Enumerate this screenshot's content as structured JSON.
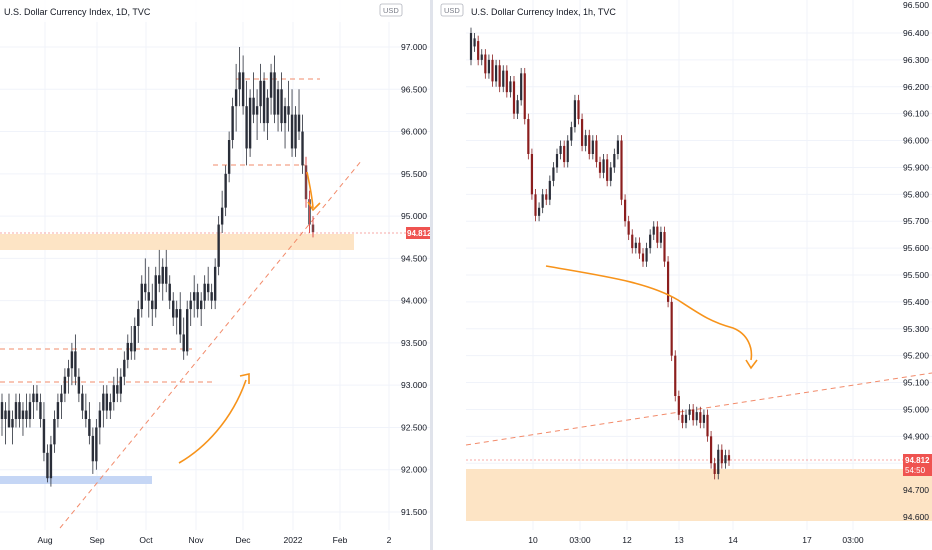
{
  "colors": {
    "up": "#26a69a",
    "down": "#ef5350",
    "candle": "#2a2e39",
    "accent": "#f7931a",
    "support_zone": "#fde3c2",
    "blue_zone": "#c5d6f5",
    "price_label": "#ef5350",
    "dashed": "#f28b6b",
    "curve": "#f7931a"
  },
  "left_chart": {
    "title": "U.S. Dollar Currency Index, 1D, TVC",
    "currency_badge": "USD",
    "y_ticks": [
      "97.000",
      "96.500",
      "96.000",
      "95.500",
      "95.000",
      "94.500",
      "94.000",
      "93.500",
      "93.000",
      "92.500",
      "92.000",
      "91.500"
    ],
    "x_ticks": [
      "Aug",
      "Sep",
      "Oct",
      "Nov",
      "Dec",
      "2022",
      "Feb",
      "2"
    ],
    "last_price": "94.812"
  },
  "right_chart": {
    "title": "U.S. Dollar Currency Index, 1h, TVC",
    "currency_badge": "USD",
    "top_partial_tick": "96.500",
    "y_ticks": [
      "96.400",
      "96.300",
      "96.200",
      "96.100",
      "96.000",
      "95.900",
      "95.800",
      "95.700",
      "95.600",
      "95.500",
      "95.400",
      "95.300",
      "95.200",
      "95.100",
      "95.000",
      "94.900",
      "94.800",
      "94.700",
      "94.600"
    ],
    "x_ticks": [
      "10",
      "03:00",
      "12",
      "13",
      "14",
      "17",
      "03:00"
    ],
    "last_price": "94.812",
    "countdown": "54:50"
  },
  "chart_data": [
    {
      "type": "candlestick",
      "title": "U.S. Dollar Currency Index, 1D, TVC",
      "ylim": [
        91.3,
        97.3
      ],
      "x_labels": [
        "Aug",
        "Sep",
        "Oct",
        "Nov",
        "Dec",
        "2022",
        "Feb",
        "2"
      ],
      "last": 94.812,
      "ohlc": [
        [
          92.8,
          92.9,
          92.4,
          92.6
        ],
        [
          92.6,
          92.8,
          92.3,
          92.7
        ],
        [
          92.7,
          92.9,
          92.5,
          92.5
        ],
        [
          92.5,
          92.7,
          92.3,
          92.6
        ],
        [
          92.6,
          92.9,
          92.5,
          92.8
        ],
        [
          92.8,
          92.9,
          92.5,
          92.6
        ],
        [
          92.6,
          92.8,
          92.4,
          92.7
        ],
        [
          92.7,
          92.9,
          92.5,
          92.6
        ],
        [
          92.6,
          92.9,
          92.5,
          92.8
        ],
        [
          92.8,
          93.0,
          92.6,
          92.9
        ],
        [
          92.9,
          93.0,
          92.7,
          92.8
        ],
        [
          92.8,
          92.9,
          92.5,
          92.6
        ],
        [
          92.6,
          92.8,
          92.1,
          92.2
        ],
        [
          92.2,
          92.3,
          91.85,
          91.9
        ],
        [
          91.9,
          92.4,
          91.8,
          92.3
        ],
        [
          92.3,
          92.7,
          92.2,
          92.6
        ],
        [
          92.6,
          92.9,
          92.5,
          92.8
        ],
        [
          92.8,
          93.0,
          92.6,
          92.9
        ],
        [
          92.9,
          93.2,
          92.8,
          93.1
        ],
        [
          93.1,
          93.3,
          92.9,
          93.2
        ],
        [
          93.2,
          93.5,
          93.0,
          93.4
        ],
        [
          93.4,
          93.6,
          93.0,
          93.1
        ],
        [
          93.1,
          93.2,
          92.8,
          92.9
        ],
        [
          92.9,
          93.0,
          92.6,
          92.7
        ],
        [
          92.7,
          92.9,
          92.5,
          92.6
        ],
        [
          92.6,
          92.8,
          92.3,
          92.4
        ],
        [
          92.4,
          92.5,
          91.95,
          92.1
        ],
        [
          92.1,
          92.6,
          92.0,
          92.5
        ],
        [
          92.5,
          92.8,
          92.3,
          92.7
        ],
        [
          92.7,
          93.0,
          92.5,
          92.9
        ],
        [
          92.9,
          93.0,
          92.6,
          92.7
        ],
        [
          92.7,
          92.9,
          92.6,
          92.8
        ],
        [
          92.8,
          93.1,
          92.7,
          93.0
        ],
        [
          93.0,
          93.2,
          92.8,
          92.9
        ],
        [
          92.9,
          93.2,
          92.8,
          93.1
        ],
        [
          93.1,
          93.4,
          93.0,
          93.3
        ],
        [
          93.3,
          93.6,
          93.2,
          93.5
        ],
        [
          93.5,
          93.7,
          93.3,
          93.4
        ],
        [
          93.4,
          93.8,
          93.3,
          93.7
        ],
        [
          93.7,
          94.0,
          93.5,
          93.9
        ],
        [
          93.9,
          94.3,
          93.8,
          94.2
        ],
        [
          94.2,
          94.5,
          94.0,
          94.1
        ],
        [
          94.1,
          94.4,
          93.8,
          94.0
        ],
        [
          94.0,
          94.2,
          93.7,
          93.9
        ],
        [
          93.9,
          94.4,
          93.8,
          94.3
        ],
        [
          94.3,
          94.6,
          94.1,
          94.2
        ],
        [
          94.2,
          94.5,
          94.0,
          94.4
        ],
        [
          94.4,
          94.6,
          94.1,
          94.2
        ],
        [
          94.2,
          94.3,
          93.9,
          94.0
        ],
        [
          94.0,
          94.1,
          93.7,
          93.8
        ],
        [
          93.8,
          94.0,
          93.6,
          93.9
        ],
        [
          93.9,
          94.1,
          93.5,
          93.6
        ],
        [
          93.6,
          93.8,
          93.3,
          93.4
        ],
        [
          93.4,
          94.0,
          93.35,
          93.9
        ],
        [
          93.9,
          94.1,
          93.7,
          94.0
        ],
        [
          94.0,
          94.3,
          93.8,
          94.1
        ],
        [
          94.1,
          94.2,
          93.8,
          93.9
        ],
        [
          93.9,
          94.1,
          93.7,
          94.0
        ],
        [
          94.0,
          94.3,
          93.9,
          94.2
        ],
        [
          94.2,
          94.4,
          94.0,
          94.1
        ],
        [
          94.1,
          94.2,
          93.9,
          94.0
        ],
        [
          94.0,
          94.5,
          93.9,
          94.4
        ],
        [
          94.4,
          95.0,
          94.3,
          94.9
        ],
        [
          94.9,
          95.3,
          94.8,
          95.1
        ],
        [
          95.1,
          95.6,
          95.0,
          95.5
        ],
        [
          95.5,
          96.0,
          95.4,
          95.9
        ],
        [
          95.9,
          96.4,
          95.8,
          96.3
        ],
        [
          96.3,
          96.8,
          96.0,
          96.5
        ],
        [
          96.5,
          97.0,
          96.3,
          96.7
        ],
        [
          96.7,
          96.9,
          96.2,
          96.3
        ],
        [
          96.3,
          96.6,
          95.6,
          95.8
        ],
        [
          95.8,
          96.5,
          95.7,
          96.4
        ],
        [
          96.4,
          96.7,
          96.1,
          96.2
        ],
        [
          96.2,
          96.5,
          95.9,
          96.3
        ],
        [
          96.3,
          96.8,
          96.1,
          96.6
        ],
        [
          96.6,
          96.7,
          96.0,
          96.1
        ],
        [
          96.1,
          96.5,
          95.9,
          96.4
        ],
        [
          96.4,
          96.8,
          96.2,
          96.7
        ],
        [
          96.7,
          96.9,
          96.1,
          96.2
        ],
        [
          96.2,
          96.6,
          96.0,
          96.5
        ],
        [
          96.5,
          96.7,
          96.0,
          96.1
        ],
        [
          96.1,
          96.4,
          95.8,
          96.3
        ],
        [
          96.3,
          96.6,
          96.0,
          96.2
        ],
        [
          96.2,
          96.5,
          95.7,
          95.8
        ],
        [
          95.8,
          96.3,
          95.7,
          96.2
        ],
        [
          96.2,
          96.5,
          95.9,
          96.0
        ],
        [
          96.0,
          96.2,
          95.5,
          95.6
        ],
        [
          95.6,
          95.7,
          95.1,
          95.2
        ],
        [
          95.2,
          95.3,
          94.8,
          94.9
        ],
        [
          94.9,
          95.0,
          94.75,
          94.81
        ]
      ]
    },
    {
      "type": "candlestick",
      "title": "U.S. Dollar Currency Index, 1h, TVC",
      "ylim": [
        94.57,
        96.5
      ],
      "x_labels": [
        "10",
        "03:00",
        "12",
        "13",
        "14",
        "17",
        "03:00"
      ],
      "last": 94.812
    }
  ]
}
